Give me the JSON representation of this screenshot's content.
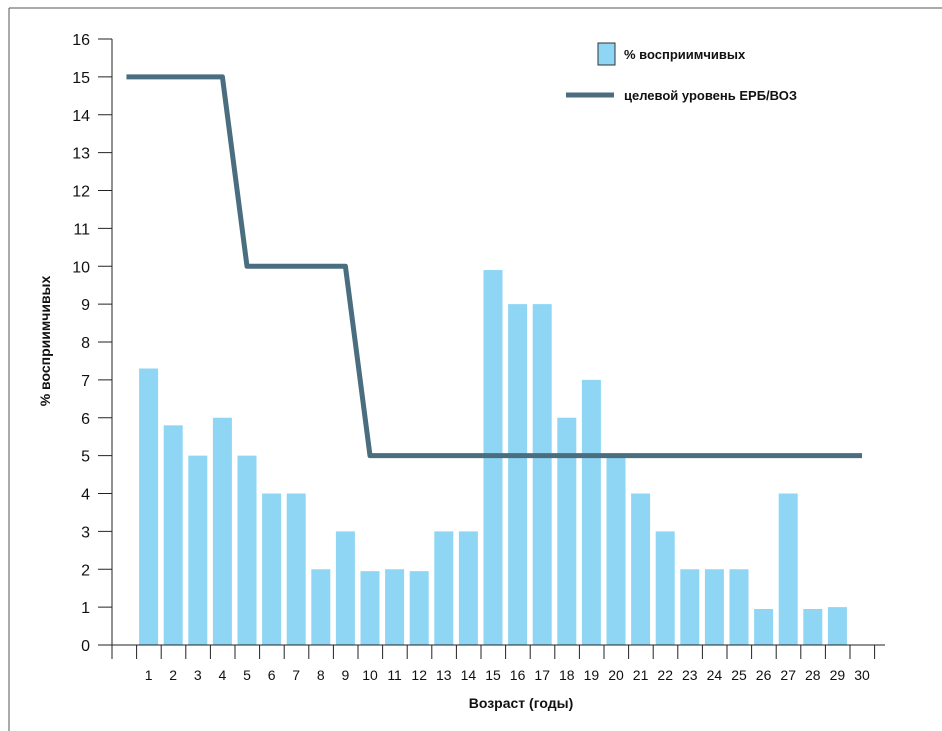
{
  "chart_data": {
    "type": "bar",
    "xlabel": "Возраст (годы)",
    "ylabel": "% восприимчивых",
    "ylim": [
      0,
      16
    ],
    "yticks": [
      0,
      1,
      2,
      3,
      4,
      5,
      6,
      7,
      8,
      9,
      10,
      11,
      12,
      13,
      14,
      15,
      16
    ],
    "categories": [
      "1",
      "2",
      "3",
      "4",
      "5",
      "6",
      "7",
      "8",
      "9",
      "10",
      "11",
      "12",
      "13",
      "14",
      "15",
      "16",
      "17",
      "18",
      "19",
      "20",
      "21",
      "22",
      "23",
      "24",
      "25",
      "26",
      "27",
      "28",
      "29",
      "30"
    ],
    "series": [
      {
        "name": "% восприимчивых",
        "kind": "bar",
        "color": "#8fd6f4",
        "values": [
          7.3,
          5.8,
          5,
          6,
          5,
          4,
          4,
          2,
          3,
          1.95,
          2,
          1.95,
          3,
          3,
          9.9,
          9,
          9,
          6,
          7,
          5,
          4,
          3,
          2,
          2,
          2,
          0.95,
          4,
          0.95,
          1,
          null
        ]
      },
      {
        "name": "целевой уровень ЕРБ/ВОЗ",
        "kind": "line",
        "color": "#4a6d80",
        "points": [
          [
            0.1,
            15
          ],
          [
            4,
            15
          ],
          [
            5,
            10
          ],
          [
            9,
            10
          ],
          [
            10,
            5
          ],
          [
            30,
            5
          ]
        ]
      }
    ],
    "legend_position": "top-right",
    "grid": false
  }
}
